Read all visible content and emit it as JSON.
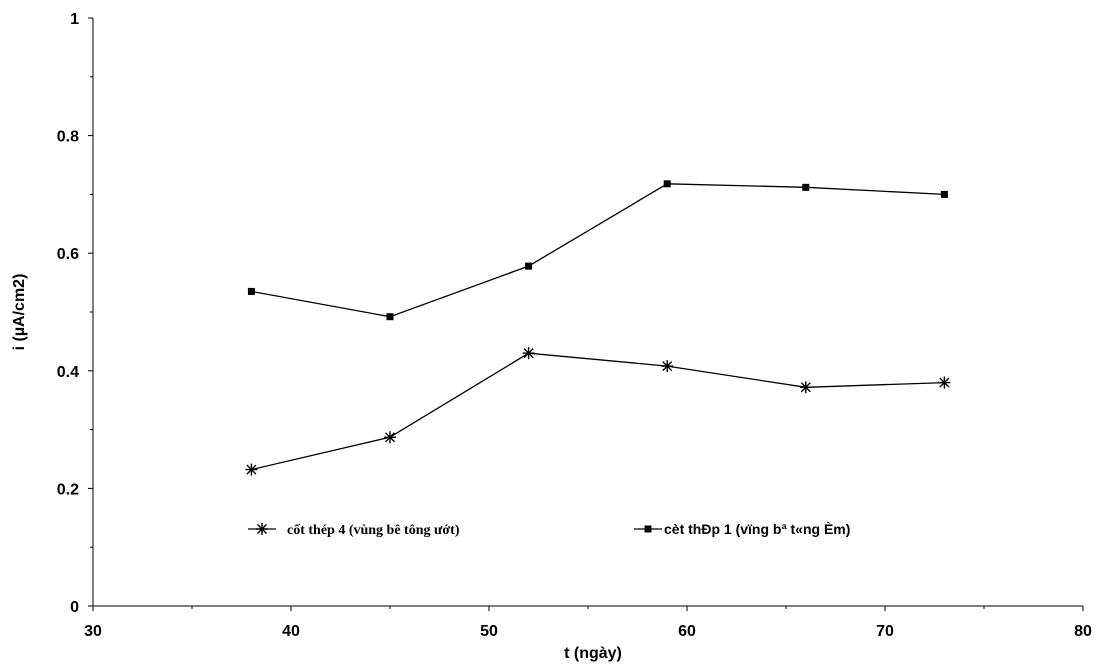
{
  "chart_data": {
    "type": "line",
    "title": "",
    "xlabel": "t (ngày)",
    "ylabel": "i (µA/cm2)",
    "xlim": [
      30,
      80
    ],
    "ylim": [
      0,
      1
    ],
    "x_ticks": [
      "30",
      "40",
      "50",
      "60",
      "70",
      "80"
    ],
    "y_ticks": [
      "0",
      "0.2",
      "0.4",
      "0.6",
      "0.8",
      "1"
    ],
    "grid": false,
    "legend_position": "bottom-center",
    "x": [
      38,
      45,
      52,
      59,
      66,
      73
    ],
    "series": [
      {
        "name": "cốt thép 4 (vùng bê tông ướt)",
        "marker": "asterisk",
        "color": "#000000",
        "values": [
          0.232,
          0.287,
          0.43,
          0.408,
          0.372,
          0.38
        ]
      },
      {
        "name": "cèt thÐp 1 (vïng bª t«ng Èm)",
        "marker": "square",
        "color": "#000000",
        "values": [
          0.535,
          0.492,
          0.578,
          0.718,
          0.712,
          0.7
        ]
      }
    ]
  }
}
